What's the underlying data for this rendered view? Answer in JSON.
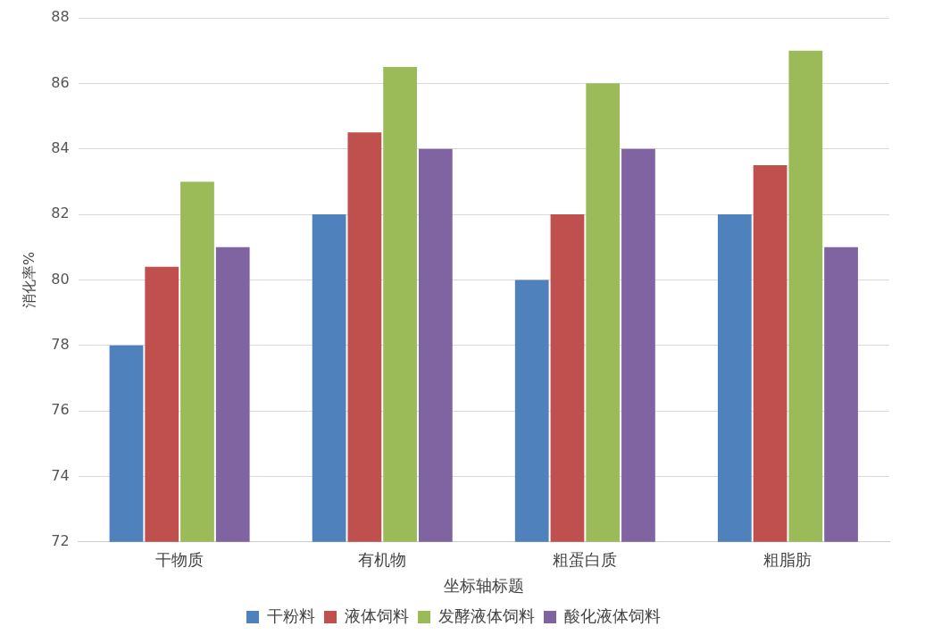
{
  "chart_data": {
    "type": "bar",
    "xlabel": "坐标轴标题",
    "ylabel": "消化率%",
    "categories": [
      "干物质",
      "有机物",
      "粗蛋白质",
      "粗脂肪"
    ],
    "series": [
      {
        "name": "干粉料",
        "color": "#4f81bd",
        "values": [
          78,
          82,
          80,
          82
        ]
      },
      {
        "name": "液体饲料",
        "color": "#c0504d",
        "values": [
          80.4,
          84.5,
          82,
          83.5
        ]
      },
      {
        "name": "发酵液体饲料",
        "color": "#9bbb59",
        "values": [
          83,
          86.5,
          86,
          87
        ]
      },
      {
        "name": "酸化液体饲料",
        "color": "#8064a2",
        "values": [
          81,
          84,
          84,
          81
        ]
      }
    ],
    "ylim": [
      72,
      88
    ],
    "yticks": [
      72,
      74,
      76,
      78,
      80,
      82,
      84,
      86,
      88
    ],
    "grid": "y",
    "legend": "bottom"
  }
}
